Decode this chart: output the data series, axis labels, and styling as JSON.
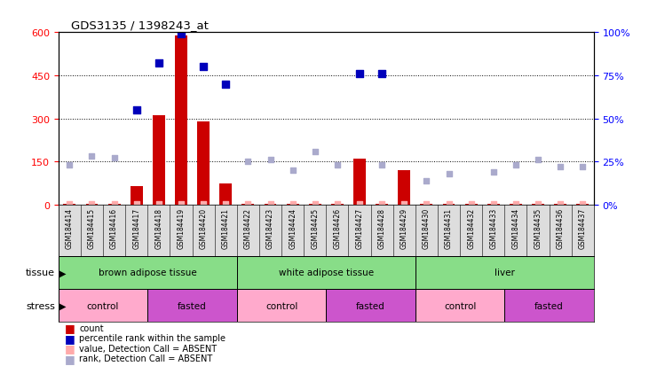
{
  "title": "GDS3135 / 1398243_at",
  "samples": [
    "GSM184414",
    "GSM184415",
    "GSM184416",
    "GSM184417",
    "GSM184418",
    "GSM184419",
    "GSM184420",
    "GSM184421",
    "GSM184422",
    "GSM184423",
    "GSM184424",
    "GSM184425",
    "GSM184426",
    "GSM184427",
    "GSM184428",
    "GSM184429",
    "GSM184430",
    "GSM184431",
    "GSM184432",
    "GSM184433",
    "GSM184434",
    "GSM184435",
    "GSM184436",
    "GSM184437"
  ],
  "red_bars": [
    2,
    2,
    2,
    65,
    310,
    590,
    290,
    75,
    2,
    2,
    2,
    2,
    2,
    160,
    2,
    120,
    2,
    2,
    2,
    2,
    2,
    2,
    2,
    2
  ],
  "blue_squares_pct": [
    null,
    null,
    null,
    55,
    82,
    99,
    80,
    70,
    null,
    null,
    null,
    null,
    null,
    76,
    76,
    null,
    null,
    null,
    null,
    null,
    null,
    null,
    null,
    null
  ],
  "light_red_vals": [
    2,
    2,
    2,
    2,
    2,
    2,
    2,
    2,
    2,
    2,
    2,
    2,
    2,
    2,
    2,
    2,
    2,
    2,
    2,
    2,
    2,
    2,
    2,
    2
  ],
  "light_blue_pct": [
    23,
    28,
    27,
    null,
    null,
    null,
    null,
    null,
    25,
    26,
    20,
    31,
    23,
    null,
    23,
    null,
    14,
    18,
    null,
    19,
    23,
    26,
    22,
    22
  ],
  "tissue_groups": [
    {
      "label": "brown adipose tissue",
      "start": 0,
      "end": 8
    },
    {
      "label": "white adipose tissue",
      "start": 8,
      "end": 16
    },
    {
      "label": "liver",
      "start": 16,
      "end": 24
    }
  ],
  "stress_groups": [
    {
      "label": "control",
      "start": 0,
      "end": 4,
      "type": "control"
    },
    {
      "label": "fasted",
      "start": 4,
      "end": 8,
      "type": "fasted"
    },
    {
      "label": "control",
      "start": 8,
      "end": 12,
      "type": "control"
    },
    {
      "label": "fasted",
      "start": 12,
      "end": 16,
      "type": "fasted"
    },
    {
      "label": "control",
      "start": 16,
      "end": 20,
      "type": "control"
    },
    {
      "label": "fasted",
      "start": 20,
      "end": 24,
      "type": "fasted"
    }
  ],
  "ylim_left": [
    0,
    600
  ],
  "ylim_right": [
    0,
    100
  ],
  "yticks_left": [
    0,
    150,
    300,
    450,
    600
  ],
  "yticks_right": [
    0,
    25,
    50,
    75,
    100
  ],
  "bar_color": "#CC0000",
  "blue_sq_color": "#0000BB",
  "light_red_color": "#FFAAAA",
  "light_blue_color": "#AAAACC",
  "tissue_color": "#88DD88",
  "control_color": "#FFAACC",
  "fasted_color": "#CC55CC",
  "grid_lines": [
    150,
    300,
    450
  ],
  "legend_items": [
    {
      "color": "#CC0000",
      "label": "count"
    },
    {
      "color": "#0000BB",
      "label": "percentile rank within the sample"
    },
    {
      "color": "#FFAAAA",
      "label": "value, Detection Call = ABSENT"
    },
    {
      "color": "#AAAACC",
      "label": "rank, Detection Call = ABSENT"
    }
  ]
}
